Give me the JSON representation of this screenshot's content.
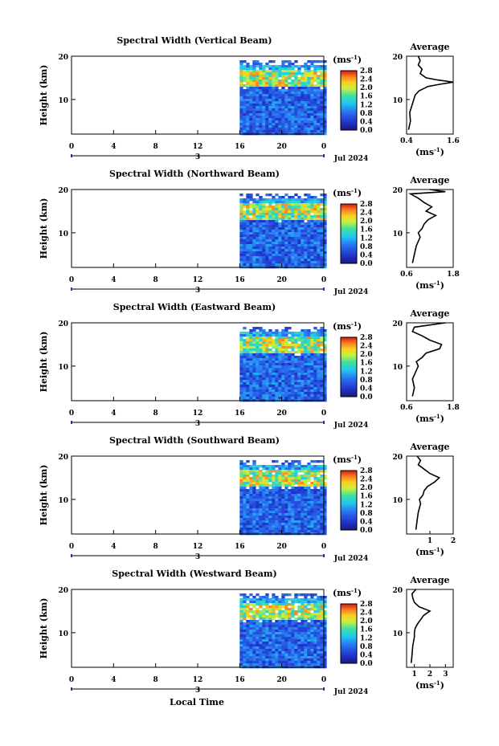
{
  "figure": {
    "xaxis_label": "Local Time",
    "date_label": "Jul 2024",
    "day_label": "3",
    "average_title": "Average",
    "unit_label": "(ms",
    "unit_sup": "-1",
    "unit_close": ")"
  },
  "chart_data": [
    {
      "type": "heatmap",
      "title": "Spectral Width (Vertical Beam)",
      "ylabel": "Height (km)",
      "xlabel": "Local Time",
      "xlim": [
        0,
        24
      ],
      "x_ticks": [
        "0",
        "4",
        "8",
        "12",
        "16",
        "20",
        "0"
      ],
      "ylim": [
        2,
        20
      ],
      "y_ticks": [
        "20",
        "10"
      ],
      "data_start_hour": 16,
      "colorbar": {
        "label": "(ms-1)",
        "ticks": [
          "2.8",
          "2.4",
          "2.0",
          "1.6",
          "1.2",
          "0.8",
          "0.4",
          "0.0"
        ],
        "range": [
          0,
          2.8
        ]
      },
      "average_profile": {
        "xlabel": "(ms-1)",
        "xlim": [
          0.4,
          1.6
        ],
        "x_ticks": [
          "0.4",
          "1.6"
        ],
        "heights_km": [
          3,
          5,
          7,
          9,
          11,
          12,
          13,
          13.5,
          14,
          14.5,
          15,
          16,
          17,
          18,
          19,
          20
        ],
        "values": [
          0.45,
          0.5,
          0.48,
          0.55,
          0.62,
          0.72,
          0.95,
          1.25,
          1.6,
          1.2,
          0.9,
          0.75,
          0.8,
          0.7,
          0.75,
          0.7
        ]
      }
    },
    {
      "type": "heatmap",
      "title": "Spectral Width (Northward Beam)",
      "ylabel": "Height (km)",
      "xlabel": "Local Time",
      "xlim": [
        0,
        24
      ],
      "x_ticks": [
        "0",
        "4",
        "8",
        "12",
        "16",
        "20",
        "0"
      ],
      "ylim": [
        2,
        20
      ],
      "y_ticks": [
        "20",
        "10"
      ],
      "data_start_hour": 16,
      "colorbar": {
        "label": "(ms-1)",
        "ticks": [
          "2.8",
          "2.4",
          "2.0",
          "1.6",
          "1.2",
          "0.8",
          "0.4",
          "0.0"
        ],
        "range": [
          0,
          2.8
        ]
      },
      "average_profile": {
        "xlabel": "(ms-1)",
        "xlim": [
          0.6,
          1.8
        ],
        "x_ticks": [
          "0.6",
          "1.8"
        ],
        "heights_km": [
          3,
          5,
          7,
          9,
          10,
          11,
          12,
          13,
          14,
          15,
          16,
          17,
          18,
          19,
          19.5,
          20
        ],
        "values": [
          0.75,
          0.8,
          0.85,
          0.95,
          0.9,
          1.0,
          1.05,
          1.15,
          1.35,
          1.1,
          1.25,
          1.05,
          0.9,
          0.7,
          1.6,
          1.2
        ]
      }
    },
    {
      "type": "heatmap",
      "title": "Spectral Width (Eastward Beam)",
      "ylabel": "Height (km)",
      "xlabel": "Local Time",
      "xlim": [
        0,
        24
      ],
      "x_ticks": [
        "0",
        "4",
        "8",
        "12",
        "16",
        "20",
        "0"
      ],
      "ylim": [
        2,
        20
      ],
      "y_ticks": [
        "20",
        "10"
      ],
      "data_start_hour": 16,
      "colorbar": {
        "label": "(ms-1)",
        "ticks": [
          "2.8",
          "2.4",
          "2.0",
          "1.6",
          "1.2",
          "0.8",
          "0.4",
          "0.0"
        ],
        "range": [
          0,
          2.8
        ]
      },
      "average_profile": {
        "xlabel": "(ms-1)",
        "xlim": [
          0.6,
          1.8
        ],
        "x_ticks": [
          "0.6",
          "1.8"
        ],
        "heights_km": [
          3,
          5,
          7,
          9,
          10,
          11,
          12,
          13,
          14,
          15,
          16,
          17,
          18,
          19,
          20
        ],
        "values": [
          0.75,
          0.8,
          0.75,
          0.85,
          0.9,
          0.85,
          1.0,
          1.1,
          1.45,
          1.5,
          1.2,
          1.0,
          0.75,
          0.8,
          1.6
        ]
      }
    },
    {
      "type": "heatmap",
      "title": "Spectral Width (Southward Beam)",
      "ylabel": "Height (km)",
      "xlabel": "Local Time",
      "xlim": [
        0,
        24
      ],
      "x_ticks": [
        "0",
        "4",
        "8",
        "12",
        "16",
        "20",
        "0"
      ],
      "ylim": [
        2,
        20
      ],
      "y_ticks": [
        "20",
        "10"
      ],
      "data_start_hour": 16,
      "colorbar": {
        "label": "(ms-1)",
        "ticks": [
          "2.8",
          "2.4",
          "2.0",
          "1.6",
          "1.2",
          "0.8",
          "0.4",
          "0.0"
        ],
        "range": [
          0,
          2.8
        ]
      },
      "average_profile": {
        "xlabel": "(ms-1)",
        "xlim": [
          0,
          2
        ],
        "x_ticks": [
          "1",
          "2"
        ],
        "heights_km": [
          3,
          5,
          7,
          9,
          10,
          11,
          12,
          13,
          14,
          15,
          16,
          17,
          18,
          19,
          20
        ],
        "values": [
          0.4,
          0.45,
          0.5,
          0.6,
          0.55,
          0.7,
          0.75,
          0.9,
          1.2,
          1.4,
          1.0,
          0.75,
          0.5,
          0.6,
          0.45
        ]
      }
    },
    {
      "type": "heatmap",
      "title": "Spectral Width (Westward Beam)",
      "ylabel": "Height (km)",
      "xlabel": "Local Time",
      "xlim": [
        0,
        24
      ],
      "x_ticks": [
        "0",
        "4",
        "8",
        "12",
        "16",
        "20",
        "0"
      ],
      "ylim": [
        2,
        20
      ],
      "y_ticks": [
        "20",
        "10"
      ],
      "data_start_hour": 16,
      "colorbar": {
        "label": "(ms-1)",
        "ticks": [
          "2.8",
          "2.4",
          "2.0",
          "1.6",
          "1.2",
          "0.8",
          "0.4",
          "0.0"
        ],
        "range": [
          0,
          2.8
        ]
      },
      "average_profile": {
        "xlabel": "(ms-1)",
        "xlim": [
          0.5,
          3.5
        ],
        "x_ticks": [
          "1",
          "2",
          "3"
        ],
        "heights_km": [
          3,
          5,
          7,
          9,
          10,
          11,
          12,
          13,
          14,
          15,
          16,
          17,
          18,
          19,
          20
        ],
        "values": [
          0.8,
          0.85,
          0.9,
          1.0,
          1.0,
          1.05,
          1.2,
          1.4,
          1.6,
          2.0,
          1.3,
          1.0,
          0.9,
          0.85,
          1.1
        ]
      }
    }
  ]
}
